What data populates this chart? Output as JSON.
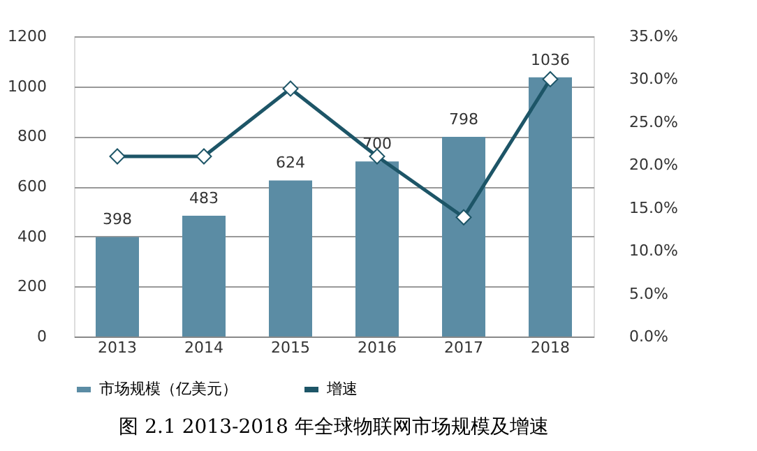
{
  "chart_data": {
    "type": "bar",
    "title": "图 2.1 2013-2018 年全球物联网市场规模及增速",
    "categories": [
      "2013",
      "2014",
      "2015",
      "2016",
      "2017",
      "2018"
    ],
    "series": [
      {
        "name": "市场规模（亿美元）",
        "color": "#5b8ca4",
        "values": [
          398,
          483,
          624,
          700,
          798,
          1036
        ],
        "value_labels": [
          "398",
          "483",
          "624",
          "700",
          "798",
          "1036"
        ]
      },
      {
        "name": "增速",
        "type": "line",
        "axis": "y2",
        "color": "#1d5567",
        "marker": "diamond",
        "values": [
          21.0,
          21.0,
          28.9,
          21.0,
          13.9,
          30.0
        ]
      }
    ],
    "ylim": [
      0,
      1200
    ],
    "yticks": [
      0,
      200,
      400,
      600,
      800,
      1000,
      1200
    ],
    "y2lim": [
      0,
      35
    ],
    "y2ticks": [
      {
        "value": 0,
        "label": "0.0%"
      },
      {
        "value": 5,
        "label": "5.0%"
      },
      {
        "value": 10,
        "label": "10.0%"
      },
      {
        "value": 15,
        "label": "15.0%"
      },
      {
        "value": 20,
        "label": "20.0%"
      },
      {
        "value": 25,
        "label": "25.0%"
      },
      {
        "value": 30,
        "label": "30.0%"
      },
      {
        "value": 35,
        "label": "35.0%"
      }
    ],
    "grid": "y",
    "legend": "bottom"
  }
}
